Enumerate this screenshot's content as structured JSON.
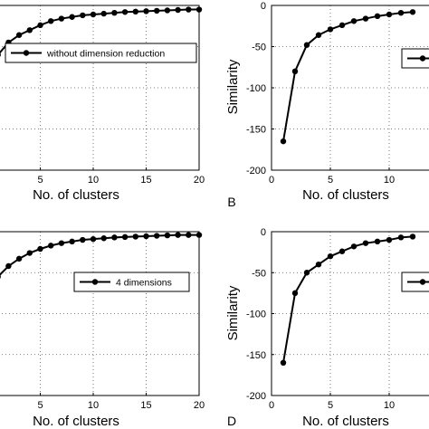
{
  "panels": [
    {
      "letter": "",
      "xlabel": "No. of clusters",
      "ylabel": "",
      "legend": "without dimension reduction"
    },
    {
      "letter": "B",
      "xlabel": "No. of clusters",
      "ylabel": "Similarity",
      "legend": ""
    },
    {
      "letter": "",
      "xlabel": "No. of clusters",
      "ylabel": "",
      "legend": "4 dimensions"
    },
    {
      "letter": "D",
      "xlabel": "No. of clusters",
      "ylabel": "Similarity",
      "legend": ""
    }
  ],
  "chart_data": [
    {
      "type": "line",
      "xlabel": "No. of clusters",
      "ylabel": "",
      "xlim": [
        0,
        20
      ],
      "ylim": [
        -200,
        0
      ],
      "xticks": [
        5,
        10,
        15,
        20
      ],
      "yticks": [],
      "grid": true,
      "legend_position": "top-right",
      "series": [
        {
          "name": "without dimension reduction",
          "x": [
            1,
            2,
            3,
            4,
            5,
            6,
            7,
            8,
            9,
            10,
            11,
            12,
            13,
            14,
            15,
            16,
            17,
            18,
            19,
            20
          ],
          "y": [
            -60,
            -45,
            -36,
            -30,
            -24,
            -19,
            -16,
            -14,
            -12,
            -11,
            -10,
            -9,
            -8,
            -7.5,
            -7,
            -6.5,
            -6,
            -5.5,
            -5,
            -5
          ]
        }
      ]
    },
    {
      "type": "line",
      "xlabel": "No. of clusters",
      "ylabel": "Similarity",
      "xlim": [
        0,
        20
      ],
      "ylim": [
        -200,
        0
      ],
      "xticks": [
        0,
        5,
        10
      ],
      "yticks": [
        -200,
        -150,
        -100,
        -50,
        0
      ],
      "grid": true,
      "legend_position": "top-right",
      "series": [
        {
          "name": "",
          "x": [
            1,
            2,
            3,
            4,
            5,
            6,
            7,
            8,
            9,
            10,
            11,
            12
          ],
          "y": [
            -165,
            -80,
            -48,
            -36,
            -29,
            -24,
            -19,
            -16,
            -13,
            -11,
            -9,
            -8
          ]
        }
      ]
    },
    {
      "type": "line",
      "xlabel": "No. of clusters",
      "ylabel": "",
      "xlim": [
        0,
        20
      ],
      "ylim": [
        -200,
        0
      ],
      "xticks": [
        5,
        10,
        15,
        20
      ],
      "yticks": [],
      "grid": true,
      "legend_position": "top-right",
      "series": [
        {
          "name": "4 dimensions",
          "x": [
            1,
            2,
            3,
            4,
            5,
            6,
            7,
            8,
            9,
            10,
            11,
            12,
            13,
            14,
            15,
            16,
            17,
            18,
            19,
            20
          ],
          "y": [
            -55,
            -42,
            -33,
            -26,
            -21,
            -17,
            -14,
            -12,
            -10,
            -9,
            -8,
            -7,
            -6.5,
            -6,
            -5.5,
            -5,
            -4.5,
            -4,
            -4,
            -4
          ]
        }
      ]
    },
    {
      "type": "line",
      "xlabel": "No. of clusters",
      "ylabel": "Similarity",
      "xlim": [
        0,
        20
      ],
      "ylim": [
        -200,
        0
      ],
      "xticks": [
        0,
        5,
        10
      ],
      "yticks": [
        -200,
        -150,
        -100,
        -50,
        0
      ],
      "grid": true,
      "legend_position": "top-right",
      "series": [
        {
          "name": "",
          "x": [
            1,
            2,
            3,
            4,
            5,
            6,
            7,
            8,
            9,
            10,
            11,
            12
          ],
          "y": [
            -160,
            -75,
            -50,
            -40,
            -30,
            -24,
            -18,
            -14,
            -12,
            -10,
            -7,
            -6
          ]
        }
      ]
    }
  ]
}
